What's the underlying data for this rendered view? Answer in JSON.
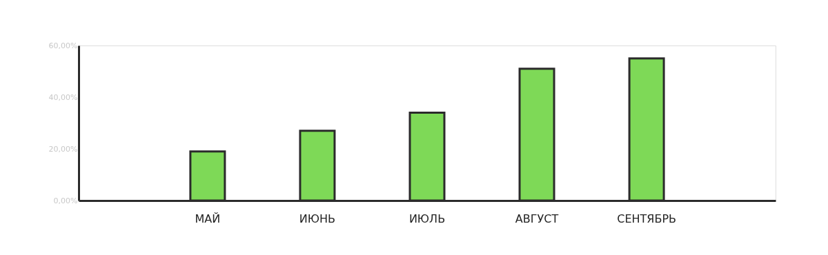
{
  "chart_data": {
    "type": "bar",
    "categories": [
      "МАЙ",
      "ИЮНЬ",
      "ИЮЛЬ",
      "АВГУСТ",
      "СЕНТЯБРЬ"
    ],
    "values": [
      19,
      27,
      34,
      51,
      55
    ],
    "color": "#7ed957",
    "ylim": [
      0,
      60
    ],
    "yticks": [
      {
        "value": 0,
        "label": "0,00%"
      },
      {
        "value": 20,
        "label": "20,00%"
      },
      {
        "value": 40,
        "label": "40,00%"
      },
      {
        "value": 60,
        "label": "60,00%"
      }
    ],
    "grid": false
  }
}
